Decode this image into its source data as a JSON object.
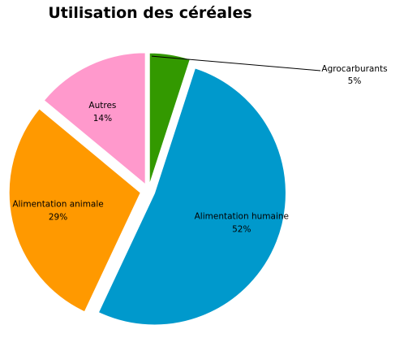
{
  "chart_data": {
    "type": "pie",
    "title": "Utilisation des céréales",
    "slices": [
      {
        "label": "Agrocarburants",
        "value": 5,
        "pct_label": "5%",
        "color": "#339900"
      },
      {
        "label": "Alimentation humaine",
        "value": 52,
        "pct_label": "52%",
        "color": "#0099cc"
      },
      {
        "label": "Alimentation animale",
        "value": 29,
        "pct_label": "29%",
        "color": "#ff9900"
      },
      {
        "label": "Autres",
        "value": 14,
        "pct_label": "14%",
        "color": "#ff99cc"
      }
    ],
    "start_angle_deg": 0,
    "direction": "clockwise",
    "exploded": true,
    "legend": "none",
    "leader_line_on": "Agrocarburants"
  }
}
